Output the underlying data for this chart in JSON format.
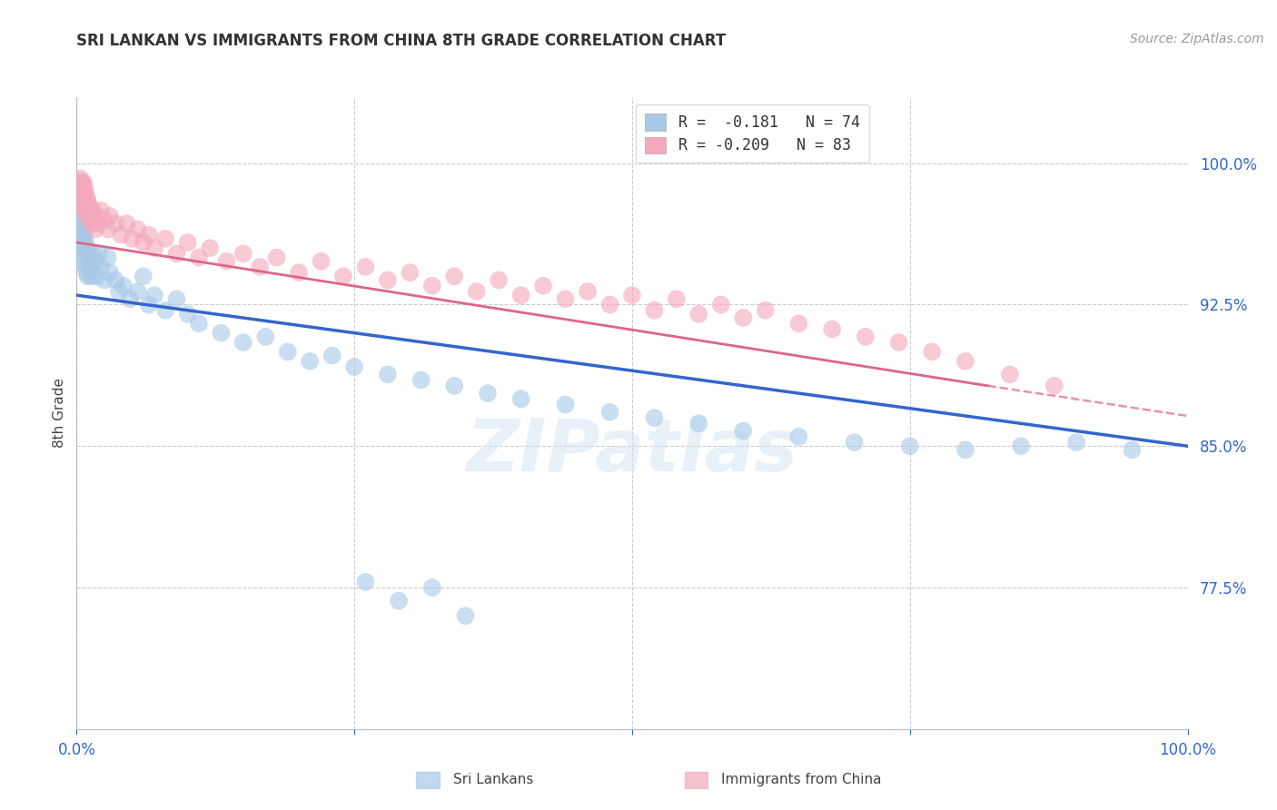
{
  "title": "SRI LANKAN VS IMMIGRANTS FROM CHINA 8TH GRADE CORRELATION CHART",
  "source": "Source: ZipAtlas.com",
  "ylabel": "8th Grade",
  "ytick_values": [
    0.775,
    0.85,
    0.925,
    1.0
  ],
  "xlim": [
    0.0,
    1.0
  ],
  "ylim": [
    0.7,
    1.035
  ],
  "legend_blue_label": "R =  -0.181   N = 74",
  "legend_pink_label": "R = -0.209   N = 83",
  "series_blue_label": "Sri Lankans",
  "series_pink_label": "Immigrants from China",
  "blue_color": "#a8c8e8",
  "pink_color": "#f4a8bc",
  "blue_line_color": "#3366cc",
  "pink_line_color": "#dd6688",
  "blue_scatter_x": [
    0.001,
    0.002,
    0.002,
    0.003,
    0.003,
    0.003,
    0.004,
    0.004,
    0.005,
    0.005,
    0.005,
    0.006,
    0.006,
    0.006,
    0.007,
    0.007,
    0.008,
    0.008,
    0.009,
    0.009,
    0.01,
    0.01,
    0.011,
    0.012,
    0.013,
    0.014,
    0.015,
    0.017,
    0.018,
    0.02,
    0.022,
    0.025,
    0.028,
    0.03,
    0.035,
    0.038,
    0.042,
    0.048,
    0.055,
    0.06,
    0.065,
    0.07,
    0.08,
    0.09,
    0.1,
    0.11,
    0.13,
    0.15,
    0.17,
    0.19,
    0.21,
    0.23,
    0.25,
    0.28,
    0.31,
    0.34,
    0.37,
    0.4,
    0.44,
    0.48,
    0.52,
    0.56,
    0.6,
    0.65,
    0.7,
    0.75,
    0.8,
    0.85,
    0.9,
    0.95,
    0.26,
    0.29,
    0.32,
    0.35
  ],
  "blue_scatter_y": [
    0.98,
    0.972,
    0.968,
    0.975,
    0.965,
    0.96,
    0.97,
    0.955,
    0.968,
    0.958,
    0.952,
    0.965,
    0.96,
    0.948,
    0.962,
    0.955,
    0.958,
    0.945,
    0.955,
    0.942,
    0.952,
    0.94,
    0.948,
    0.945,
    0.94,
    0.952,
    0.945,
    0.948,
    0.94,
    0.952,
    0.945,
    0.938,
    0.95,
    0.942,
    0.938,
    0.932,
    0.935,
    0.928,
    0.932,
    0.94,
    0.925,
    0.93,
    0.922,
    0.928,
    0.92,
    0.915,
    0.91,
    0.905,
    0.908,
    0.9,
    0.895,
    0.898,
    0.892,
    0.888,
    0.885,
    0.882,
    0.878,
    0.875,
    0.872,
    0.868,
    0.865,
    0.862,
    0.858,
    0.855,
    0.852,
    0.85,
    0.848,
    0.85,
    0.852,
    0.848,
    0.778,
    0.768,
    0.775,
    0.76
  ],
  "pink_scatter_x": [
    0.001,
    0.002,
    0.002,
    0.003,
    0.003,
    0.003,
    0.004,
    0.004,
    0.004,
    0.005,
    0.005,
    0.006,
    0.006,
    0.007,
    0.007,
    0.007,
    0.008,
    0.008,
    0.009,
    0.009,
    0.01,
    0.01,
    0.011,
    0.011,
    0.012,
    0.013,
    0.014,
    0.015,
    0.016,
    0.017,
    0.018,
    0.02,
    0.022,
    0.025,
    0.028,
    0.03,
    0.035,
    0.04,
    0.045,
    0.05,
    0.055,
    0.06,
    0.065,
    0.07,
    0.08,
    0.09,
    0.1,
    0.11,
    0.12,
    0.135,
    0.15,
    0.165,
    0.18,
    0.2,
    0.22,
    0.24,
    0.26,
    0.28,
    0.3,
    0.32,
    0.34,
    0.36,
    0.38,
    0.4,
    0.42,
    0.44,
    0.46,
    0.48,
    0.5,
    0.52,
    0.54,
    0.56,
    0.58,
    0.6,
    0.62,
    0.65,
    0.68,
    0.71,
    0.74,
    0.77,
    0.8,
    0.84,
    0.88
  ],
  "pink_scatter_y": [
    0.99,
    0.988,
    0.985,
    0.992,
    0.988,
    0.982,
    0.99,
    0.985,
    0.978,
    0.988,
    0.982,
    0.99,
    0.985,
    0.988,
    0.98,
    0.975,
    0.985,
    0.978,
    0.982,
    0.975,
    0.98,
    0.972,
    0.978,
    0.97,
    0.975,
    0.972,
    0.968,
    0.975,
    0.97,
    0.965,
    0.972,
    0.968,
    0.975,
    0.97,
    0.965,
    0.972,
    0.968,
    0.962,
    0.968,
    0.96,
    0.965,
    0.958,
    0.962,
    0.955,
    0.96,
    0.952,
    0.958,
    0.95,
    0.955,
    0.948,
    0.952,
    0.945,
    0.95,
    0.942,
    0.948,
    0.94,
    0.945,
    0.938,
    0.942,
    0.935,
    0.94,
    0.932,
    0.938,
    0.93,
    0.935,
    0.928,
    0.932,
    0.925,
    0.93,
    0.922,
    0.928,
    0.92,
    0.925,
    0.918,
    0.922,
    0.915,
    0.912,
    0.908,
    0.905,
    0.9,
    0.895,
    0.888,
    0.882
  ],
  "blue_trend_x_start": 0.0,
  "blue_trend_x_end": 1.0,
  "blue_trend_y_start": 0.93,
  "blue_trend_y_end": 0.85,
  "pink_trend_solid_x_start": 0.0,
  "pink_trend_solid_x_end": 0.82,
  "pink_trend_y_start": 0.958,
  "pink_trend_y_end": 0.882,
  "pink_trend_dash_x_start": 0.82,
  "pink_trend_dash_x_end": 1.0,
  "pink_trend_dash_y_start": 0.882,
  "pink_trend_dash_y_end": 0.866,
  "watermark": "ZIPatlas",
  "grid_color": "#cccccc",
  "bg_color": "#ffffff"
}
